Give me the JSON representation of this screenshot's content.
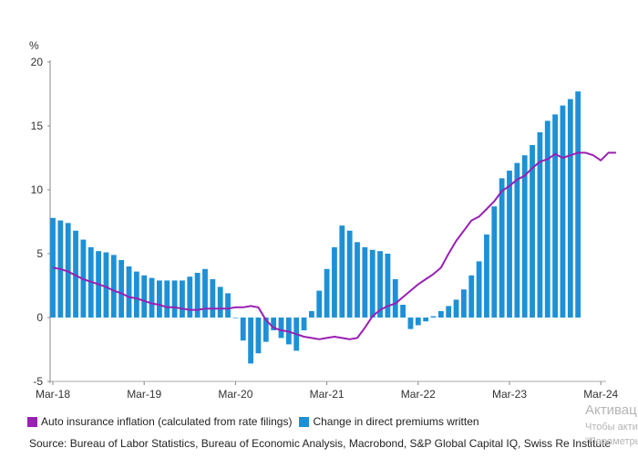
{
  "chart_data": {
    "type": "bar",
    "ylabel": "%",
    "ylim": [
      -5,
      20
    ],
    "yticks": [
      -5,
      0,
      5,
      10,
      15,
      20
    ],
    "xtick_labels": [
      "Mar-18",
      "Mar-19",
      "Mar-20",
      "Mar-21",
      "Mar-22",
      "Mar-23",
      "Mar-24"
    ],
    "x_start": "Mar-18",
    "series": [
      {
        "name": "Change in direct premiums written",
        "type": "bar",
        "color": "#1e90d6",
        "values": [
          7.8,
          7.6,
          7.4,
          6.8,
          6.1,
          5.5,
          5.2,
          5.1,
          4.9,
          4.5,
          4.0,
          3.6,
          3.3,
          3.1,
          2.9,
          2.9,
          2.9,
          2.9,
          3.2,
          3.5,
          3.8,
          3.0,
          2.4,
          1.9,
          0.0,
          -1.8,
          -3.6,
          -2.8,
          -1.9,
          -1.0,
          -1.6,
          -2.1,
          -2.6,
          -1.0,
          0.5,
          2.1,
          3.8,
          5.5,
          7.2,
          6.8,
          5.9,
          5.5,
          5.3,
          5.2,
          5.0,
          3.0,
          1.0,
          -0.9,
          -0.6,
          -0.3,
          0.1,
          0.5,
          0.9,
          1.4,
          2.2,
          3.3,
          4.4,
          6.5,
          8.7,
          10.9,
          11.5,
          12.1,
          12.7,
          13.5,
          14.5,
          15.4,
          15.9,
          16.6,
          17.1,
          17.7
        ]
      },
      {
        "name": "Auto insurance inflation (calculated from rate filings)",
        "type": "line",
        "color": "#9a1fb4",
        "values": [
          3.9,
          3.8,
          3.6,
          3.3,
          3.0,
          2.8,
          2.6,
          2.4,
          2.1,
          1.9,
          1.6,
          1.5,
          1.3,
          1.1,
          1.0,
          0.8,
          0.8,
          0.7,
          0.6,
          0.6,
          0.7,
          0.7,
          0.7,
          0.7,
          0.8,
          0.8,
          0.9,
          0.8,
          -0.2,
          -0.8,
          -1.0,
          -1.1,
          -1.3,
          -1.5,
          -1.6,
          -1.7,
          -1.6,
          -1.5,
          -1.6,
          -1.7,
          -1.6,
          -0.8,
          0.1,
          0.6,
          0.9,
          1.1,
          1.6,
          2.1,
          2.6,
          3.0,
          3.4,
          3.9,
          5.0,
          6.0,
          6.8,
          7.6,
          7.9,
          8.5,
          9.1,
          9.9,
          10.3,
          10.8,
          11.1,
          11.7,
          12.2,
          12.4,
          12.8,
          12.5,
          12.7,
          12.9,
          12.9,
          12.7,
          12.3,
          12.9,
          12.9
        ]
      }
    ],
    "legend_position": "bottom-left",
    "grid": false
  },
  "legend": [
    {
      "label": "Auto insurance inflation (calculated from rate filings)",
      "color": "#9a1fb4"
    },
    {
      "label": "Change in direct premiums written",
      "color": "#1e90d6"
    }
  ],
  "source": "Source: Bureau of Labor Statistics, Bureau of Economic Analysis, Macrobond, S&P Global Capital IQ, Swiss Re Institute",
  "watermark": {
    "title": "Активац",
    "line1": "Чтобы акти",
    "line2": "\"Параметры"
  }
}
